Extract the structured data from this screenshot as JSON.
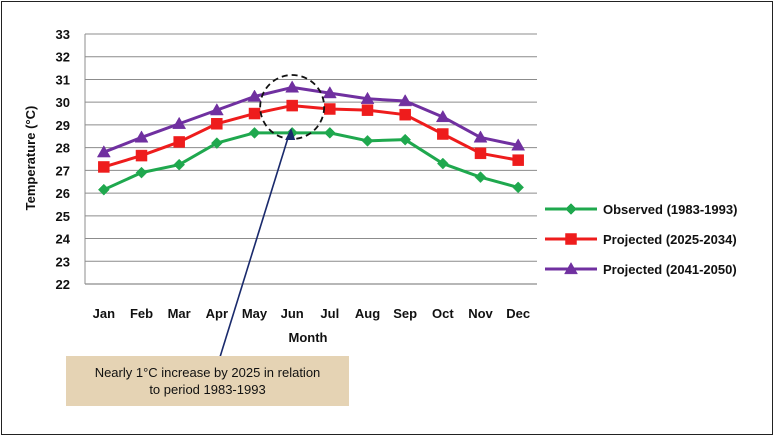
{
  "chart_data": {
    "type": "line",
    "categories": [
      "Jan",
      "Feb",
      "Mar",
      "Apr",
      "May",
      "Jun",
      "Jul",
      "Aug",
      "Sep",
      "Oct",
      "Nov",
      "Dec"
    ],
    "series": [
      {
        "name": "Observed (1983-1993)",
        "marker": "diamond",
        "color": "#1fa84e",
        "values": [
          26.15,
          26.9,
          27.25,
          28.2,
          28.65,
          28.65,
          28.65,
          28.3,
          28.35,
          27.3,
          26.7,
          26.25
        ]
      },
      {
        "name": "Projected  (2025-2034)",
        "marker": "square",
        "color": "#ee1c1c",
        "values": [
          27.15,
          27.65,
          28.25,
          29.05,
          29.5,
          29.85,
          29.7,
          29.65,
          29.45,
          28.6,
          27.75,
          27.45
        ]
      },
      {
        "name": "Projected (2041-2050)",
        "marker": "triangle",
        "color": "#7030a0",
        "values": [
          27.8,
          28.45,
          29.05,
          29.65,
          30.25,
          30.65,
          30.4,
          30.15,
          30.05,
          29.35,
          28.45,
          28.1
        ]
      }
    ],
    "xlabel": "Month",
    "ylabel": "Temperature (°C)",
    "ylim": [
      22,
      33
    ],
    "yticks": [
      "22",
      "23",
      "24",
      "25",
      "26",
      "27",
      "28",
      "29",
      "30",
      "31",
      "32",
      "33"
    ],
    "grid": true,
    "legend": "right",
    "annotation": {
      "text": "Nearly 1°C increase by 2025 in relation to period 1983-1993",
      "line1": "Nearly 1°C increase by 2025 in relation",
      "line2": "to period 1983-1993",
      "highlight_category": "Jun"
    }
  }
}
